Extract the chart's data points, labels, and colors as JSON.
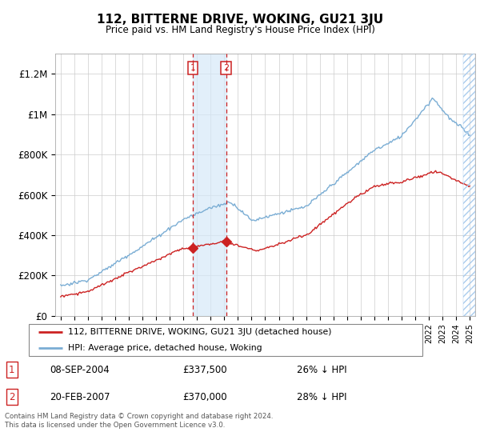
{
  "title": "112, BITTERNE DRIVE, WOKING, GU21 3JU",
  "subtitle": "Price paid vs. HM Land Registry's House Price Index (HPI)",
  "footnote": "Contains HM Land Registry data © Crown copyright and database right 2024.\nThis data is licensed under the Open Government Licence v3.0.",
  "legend_line1": "112, BITTERNE DRIVE, WOKING, GU21 3JU (detached house)",
  "legend_line2": "HPI: Average price, detached house, Woking",
  "transaction1_date": "08-SEP-2004",
  "transaction1_price": "£337,500",
  "transaction1_hpi": "26% ↓ HPI",
  "transaction2_date": "20-FEB-2007",
  "transaction2_price": "£370,000",
  "transaction2_hpi": "28% ↓ HPI",
  "hpi_color": "#7aadd4",
  "price_color": "#cc2222",
  "marker_color": "#cc2222",
  "shading_color": "#d6e9f8",
  "dashed_line_color": "#cc2222",
  "background_color": "#ffffff",
  "ylim": [
    0,
    1300000
  ],
  "yticks": [
    0,
    200000,
    400000,
    600000,
    800000,
    1000000,
    1200000
  ],
  "ytick_labels": [
    "£0",
    "£200K",
    "£400K",
    "£600K",
    "£800K",
    "£1M",
    "£1.2M"
  ],
  "year_start": 1995,
  "year_end": 2025,
  "sale1_year": 2004.69,
  "sale2_year": 2007.13,
  "sale1_price": 337500,
  "sale2_price": 370000
}
